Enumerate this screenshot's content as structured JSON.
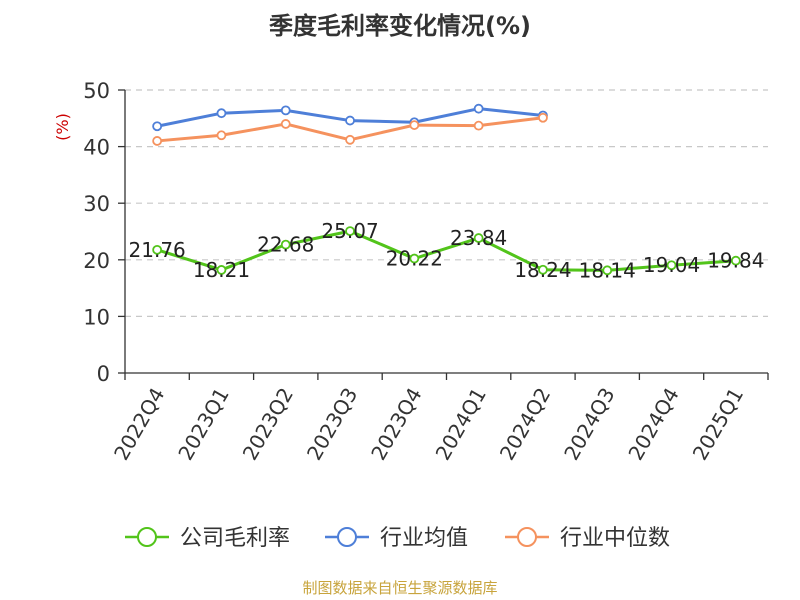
{
  "chart_data": {
    "type": "line",
    "title": "季度毛利率变化情况(%)",
    "ylabel": "(%)",
    "xlabel": "",
    "ylim": [
      0,
      50
    ],
    "yticks": [
      0,
      10,
      20,
      30,
      40,
      50
    ],
    "grid": true,
    "legend_position": "bottom",
    "categories": [
      "2022Q4",
      "2023Q1",
      "2023Q2",
      "2023Q3",
      "2023Q4",
      "2024Q1",
      "2024Q2",
      "2024Q3",
      "2024Q4",
      "2025Q1"
    ],
    "series": [
      {
        "name": "公司毛利率",
        "color": "#52c41a",
        "values": [
          21.76,
          18.21,
          22.68,
          25.07,
          20.22,
          23.84,
          18.24,
          18.14,
          19.04,
          19.84
        ],
        "show_labels": true,
        "labels": [
          "21.76",
          "18.21",
          "22.68",
          "25.07",
          "20.22",
          "23.84",
          "18.24",
          "18.14",
          "19.04",
          "19.84"
        ]
      },
      {
        "name": "行业均值",
        "color": "#4e7fd8",
        "values": [
          43.6,
          45.9,
          46.4,
          44.6,
          44.3,
          46.7,
          45.5,
          null,
          null,
          null
        ],
        "show_labels": false
      },
      {
        "name": "行业中位数",
        "color": "#f5925e",
        "values": [
          41.0,
          42.0,
          44.0,
          41.2,
          43.8,
          43.7,
          45.1,
          null,
          null,
          null
        ],
        "show_labels": false
      }
    ]
  },
  "source_text": "制图数据来自恒生聚源数据库"
}
